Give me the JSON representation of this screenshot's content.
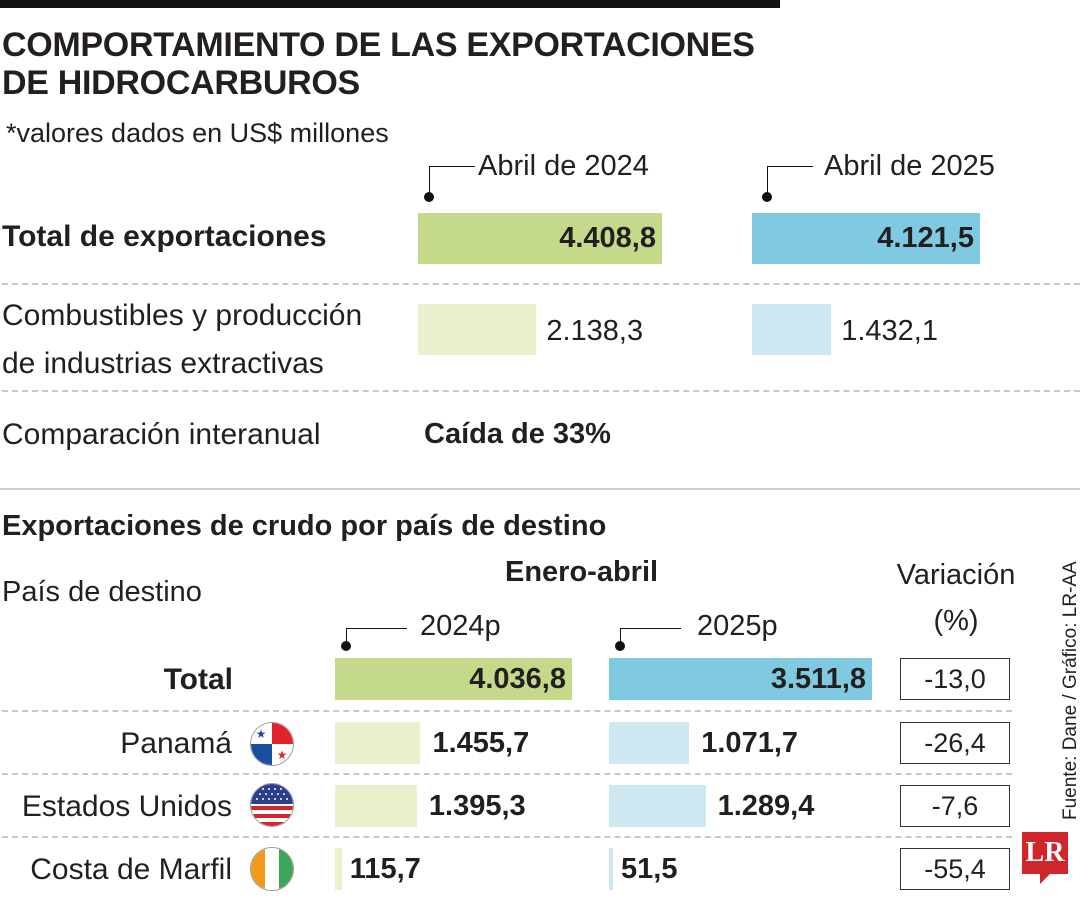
{
  "title_line1": "COMPORTAMIENTO DE LAS EXPORTACIONES",
  "title_line2": "DE HIDROCARBUROS",
  "subtitle": "*valores dados en US$ millones",
  "colors": {
    "bar_2024_strong": "#c5d98a",
    "bar_2024_light": "#ebefcb",
    "bar_2025_strong": "#7fcae0",
    "bar_2025_light": "#cde8f1",
    "logo": "#d0252b"
  },
  "chart_data": [
    {
      "type": "bar",
      "orientation": "horizontal",
      "title": "COMPORTAMIENTO DE LAS EXPORTACIONES DE HIDROCARBUROS",
      "categories": [
        "Total de exportaciones",
        "Combustibles y producción de industrias extractivas"
      ],
      "category_lines": [
        [
          "Total de exportaciones"
        ],
        [
          "Combustibles y producción",
          "de industrias extractivas"
        ]
      ],
      "series": [
        {
          "name": "Abril de 2024",
          "values": [
            4408.8,
            2138.3
          ],
          "labels": [
            "4.408,8",
            "2.138,3"
          ]
        },
        {
          "name": "Abril de 2025",
          "values": [
            4121.5,
            1432.1
          ],
          "labels": [
            "4.121,5",
            "1.432,1"
          ]
        }
      ],
      "comparison_label": "Comparación interanual",
      "comparison_value": "Caída de 33%"
    },
    {
      "type": "bar",
      "orientation": "horizontal",
      "title": "Exportaciones de crudo por país de destino",
      "row_header": "País de destino",
      "period_header": "Enero-abril",
      "variation_header": [
        "Variación",
        "(%)"
      ],
      "categories": [
        "Total",
        "Panamá",
        "Estados Unidos",
        "Costa de Marfil"
      ],
      "flags": [
        "",
        "panama-flag",
        "usa-flag",
        "ivory-coast-flag"
      ],
      "series": [
        {
          "name": "2024p",
          "values": [
            4036.8,
            1455.7,
            1395.3,
            115.7
          ],
          "labels": [
            "4.036,8",
            "1.455,7",
            "1.395,3",
            "115,7"
          ]
        },
        {
          "name": "2025p",
          "values": [
            3511.8,
            1071.7,
            1289.4,
            51.5
          ],
          "labels": [
            "3.511,8",
            "1.071,7",
            "1.289,4",
            "51,5"
          ]
        }
      ],
      "variation": [
        "-13,0",
        "-26,4",
        "-7,6",
        "-55,4"
      ]
    }
  ],
  "source": "Fuente: Dane / Gráfico: LR-AA",
  "logo": "LR"
}
